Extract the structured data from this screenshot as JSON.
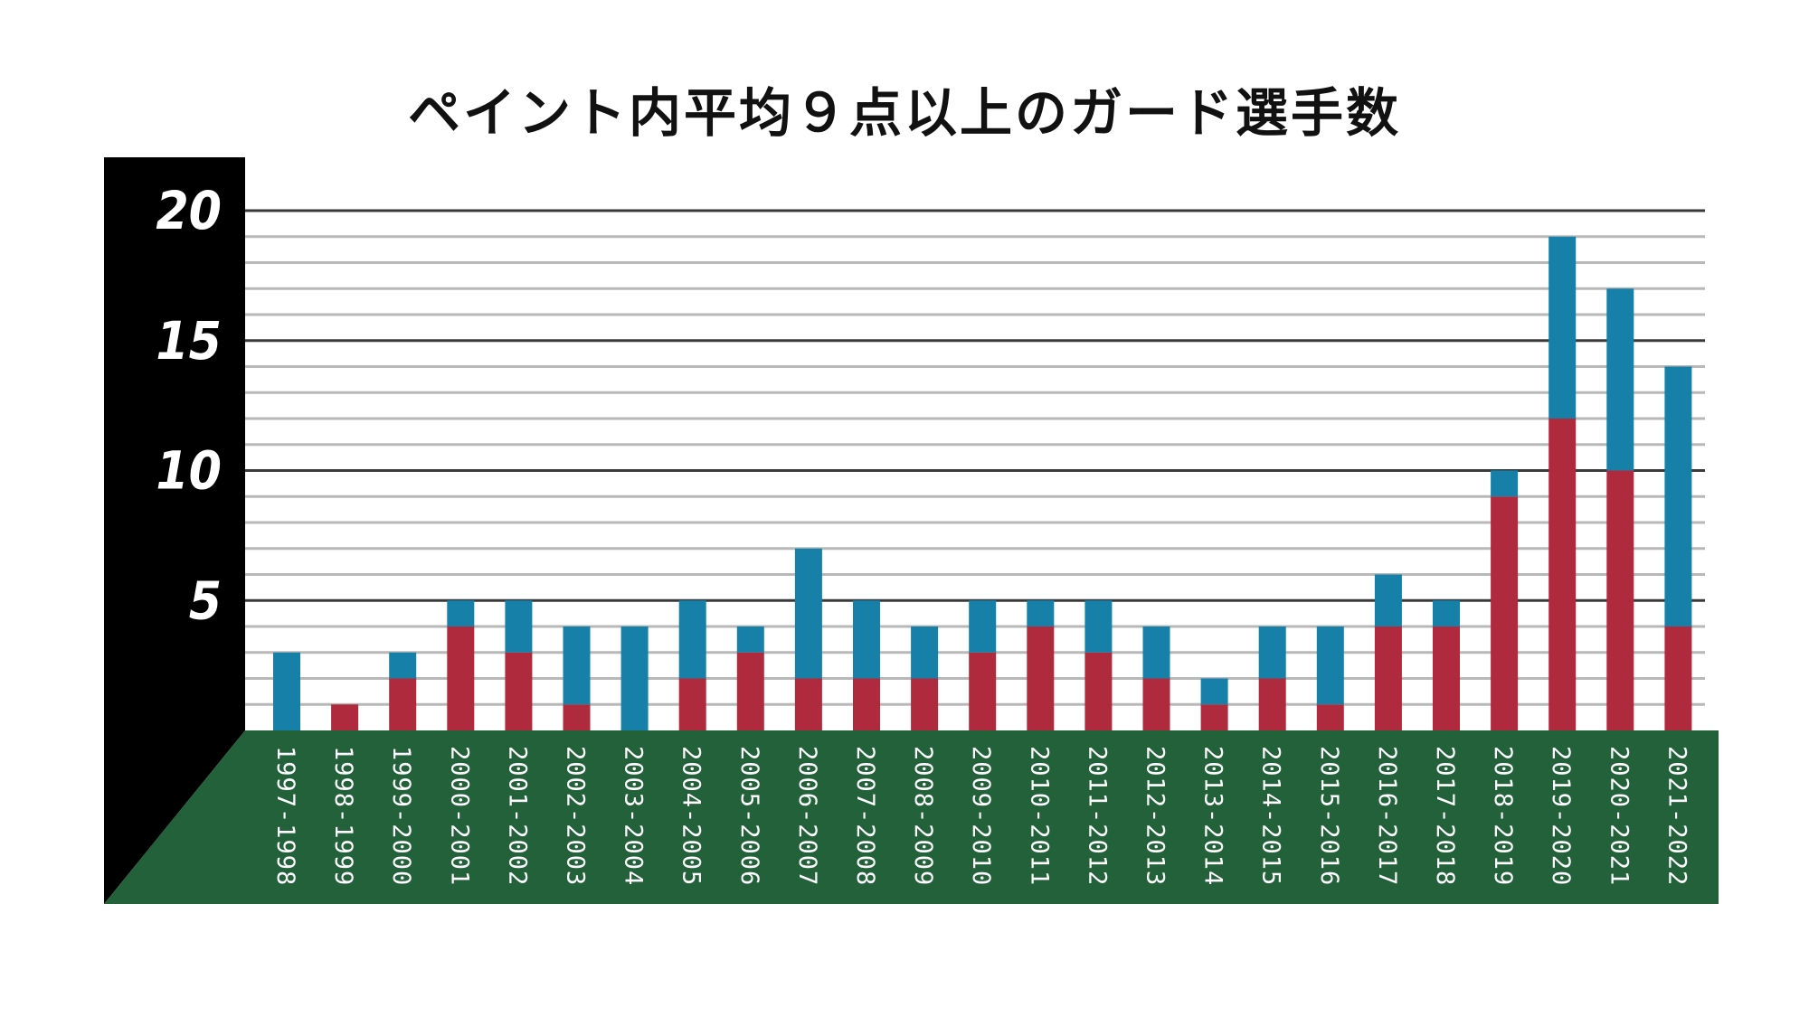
{
  "chart_data": {
    "type": "bar",
    "stacked": true,
    "title": "ペイント内平均９点以上のガード選手数",
    "xlabel": "",
    "ylabel": "",
    "ylim": [
      0,
      20
    ],
    "yticks": [
      5,
      10,
      15,
      20
    ],
    "grid": true,
    "categories": [
      "1997-1998",
      "1998-1999",
      "1999-2000",
      "2000-2001",
      "2001-2002",
      "2002-2003",
      "2003-2004",
      "2004-2005",
      "2005-2006",
      "2006-2007",
      "2007-2008",
      "2008-2009",
      "2009-2010",
      "2010-2011",
      "2011-2012",
      "2012-2013",
      "2013-2014",
      "2014-2015",
      "2015-2016",
      "2016-2017",
      "2017-2018",
      "2018-2019",
      "2019-2020",
      "2020-2021",
      "2021-2022"
    ],
    "series": [
      {
        "color": "#b02a3e",
        "values": [
          0,
          1,
          2,
          4,
          3,
          1,
          0,
          2,
          3,
          2,
          2,
          2,
          3,
          4,
          3,
          2,
          1,
          2,
          1,
          4,
          4,
          9,
          12,
          10,
          4
        ]
      },
      {
        "color": "#1680a8",
        "values": [
          3,
          0,
          1,
          1,
          2,
          3,
          4,
          3,
          1,
          5,
          3,
          2,
          2,
          1,
          2,
          2,
          1,
          2,
          3,
          2,
          1,
          1,
          7,
          7,
          10
        ]
      }
    ]
  },
  "colors": {
    "y_panel": "#000000",
    "x_panel": "#22613a",
    "grid_major": "#3a3a3a",
    "grid_minor": "#b8b8b8"
  }
}
